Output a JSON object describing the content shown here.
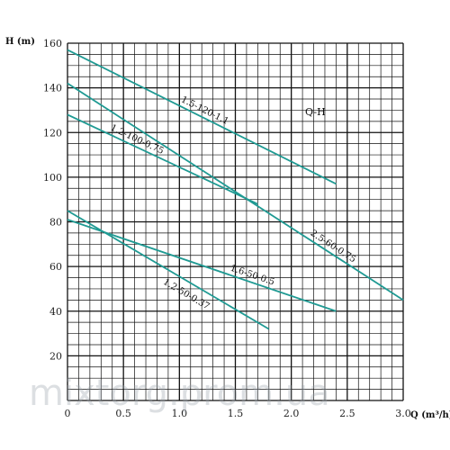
{
  "chart_data": {
    "type": "line",
    "title": "Q-H",
    "xlabel": "Q (m³/h)",
    "ylabel": "H (m)",
    "xlim": [
      0,
      3.0
    ],
    "ylim": [
      0,
      160
    ],
    "x_ticks": [
      "0",
      "0.5",
      "1.0",
      "1.5",
      "2.0",
      "2.5",
      "3.0"
    ],
    "y_ticks": [
      "20",
      "40",
      "60",
      "80",
      "100",
      "120",
      "140",
      "160"
    ],
    "grid": true,
    "line_color": "#1f9a93",
    "series": [
      {
        "name": "1.5-120-1.1",
        "x": [
          0,
          2.4
        ],
        "y": [
          157,
          97
        ]
      },
      {
        "name": "1.2-100-0.75",
        "x": [
          0,
          1.7
        ],
        "y": [
          128,
          88
        ]
      },
      {
        "name": "2.5-60-0.75",
        "x": [
          0,
          3.0
        ],
        "y": [
          142,
          45
        ]
      },
      {
        "name": "1.6-50-0.5",
        "x": [
          0,
          2.4
        ],
        "y": [
          81,
          40
        ]
      },
      {
        "name": "1.2-50-0.37",
        "x": [
          0,
          1.8
        ],
        "y": [
          85,
          32
        ]
      }
    ]
  },
  "watermark": "mixtorg.prom.ua"
}
